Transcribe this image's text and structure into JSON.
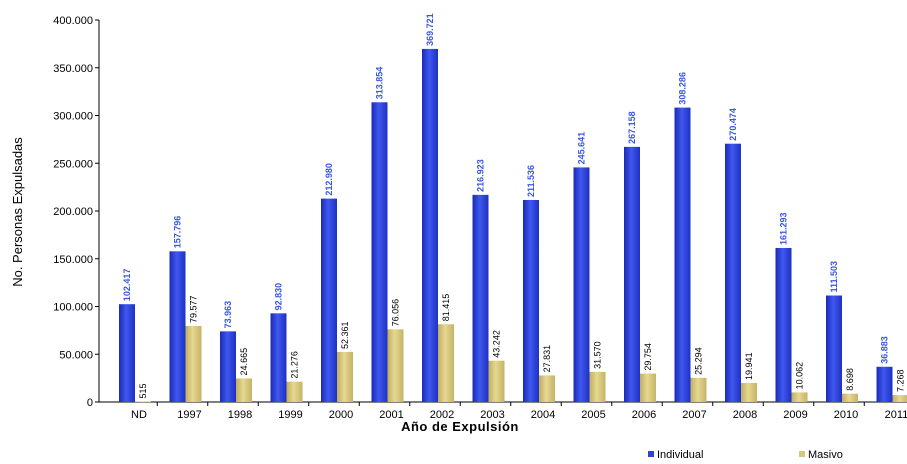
{
  "chart_data": {
    "type": "bar",
    "xlabel": "Año de Expulsión",
    "ylabel": "No. Personas Expulsadas",
    "ylim": [
      0,
      400000
    ],
    "yticks": [
      "0",
      "50.000",
      "100.000",
      "150.000",
      "200.000",
      "250.000",
      "300.000",
      "350.000",
      "400.000"
    ],
    "legend_position": "bottom-right",
    "grid": false,
    "categories": [
      "ND",
      "1997",
      "1998",
      "1999",
      "2000",
      "2001",
      "2002",
      "2003",
      "2004",
      "2005",
      "2006",
      "2007",
      "2008",
      "2009",
      "2010",
      "2011"
    ],
    "series": [
      {
        "name": "Individual",
        "color": "#2f44d6",
        "label_color": "#3a57e0",
        "values": [
          102417,
          157796,
          73963,
          92830,
          212980,
          313854,
          369721,
          216923,
          211536,
          245641,
          267158,
          308286,
          270474,
          161293,
          111503,
          36883
        ],
        "labels": [
          "102.417",
          "157.796",
          "73.963",
          "92.830",
          "212.980",
          "313.854",
          "369.721",
          "216.923",
          "211.536",
          "245.641",
          "267.158",
          "308.286",
          "270.474",
          "161.293",
          "111.503",
          "36.883"
        ]
      },
      {
        "name": "Masivo",
        "color": "#d8c780",
        "label_color": "#000000",
        "values": [
          515,
          79577,
          24665,
          21276,
          52361,
          76056,
          81415,
          43242,
          27831,
          31570,
          29754,
          25294,
          19941,
          10062,
          8698,
          7268
        ],
        "labels": [
          "515",
          "79.577",
          "24.665",
          "21.276",
          "52.361",
          "76.056",
          "81.415",
          "43.242",
          "27.831",
          "31.570",
          "29.754",
          "25.294",
          "19.941",
          "10.062",
          "8.698",
          "7.268"
        ]
      }
    ]
  }
}
